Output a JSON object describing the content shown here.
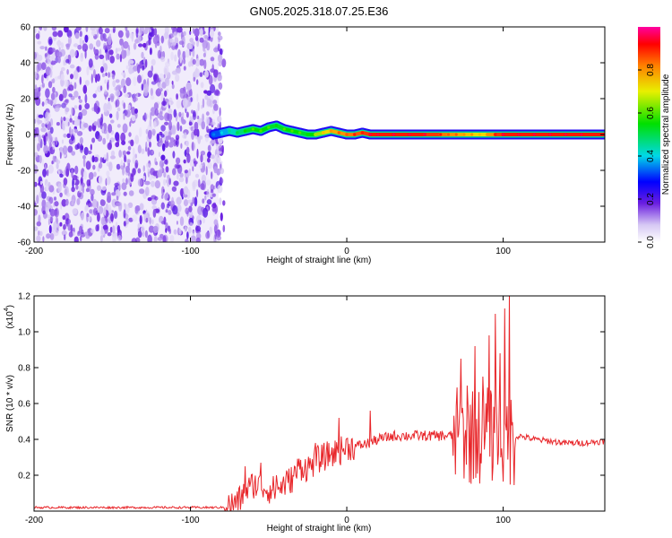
{
  "title": "GN05.2025.318.07.25.E36",
  "chart_data": [
    {
      "type": "heatmap",
      "name": "spectrogram",
      "xlabel": "Height of straight line (km)",
      "ylabel": "Frequency (Hz)",
      "xlim": [
        -200,
        165
      ],
      "ylim": [
        -60,
        60
      ],
      "xticks": [
        -200,
        -100,
        0,
        100
      ],
      "yticks": [
        -60,
        -40,
        -20,
        0,
        20,
        40,
        60
      ],
      "noise_region_x": [
        -200,
        -82
      ],
      "ridge": {
        "x": [
          -85,
          -80,
          -75,
          -70,
          -65,
          -60,
          -55,
          -50,
          -45,
          -40,
          -35,
          -30,
          -25,
          -20,
          -15,
          -10,
          -5,
          0,
          5,
          10,
          15,
          20,
          30,
          40,
          50,
          60,
          65,
          70,
          75,
          80,
          85,
          90,
          95,
          100,
          110,
          120,
          130,
          140,
          150,
          165
        ],
        "freq": [
          0,
          1,
          2,
          1,
          2,
          3,
          2,
          4,
          5,
          3,
          2,
          1,
          0,
          0,
          1,
          2,
          1,
          0,
          0,
          1,
          0,
          0,
          0,
          0,
          0,
          0,
          0,
          0,
          0,
          0,
          0,
          0,
          0,
          0,
          0,
          0,
          0,
          0,
          0,
          0
        ],
        "amplitude": [
          0.3,
          0.35,
          0.4,
          0.45,
          0.5,
          0.55,
          0.55,
          0.55,
          0.5,
          0.55,
          0.55,
          0.55,
          0.5,
          0.6,
          0.7,
          0.75,
          0.8,
          0.8,
          0.85,
          0.85,
          0.9,
          0.9,
          0.9,
          0.9,
          0.9,
          0.85,
          0.8,
          0.8,
          0.75,
          0.75,
          0.7,
          0.75,
          0.85,
          0.9,
          0.9,
          0.9,
          0.9,
          0.9,
          0.9,
          0.9
        ]
      },
      "colorbar": {
        "label": "Normalized spectral amplitude",
        "range": [
          0,
          1
        ],
        "ticks": [
          "0.0",
          "0.2",
          "0.4",
          "0.6",
          "0.8"
        ],
        "tick_values": [
          0,
          0.2,
          0.4,
          0.6,
          0.8
        ]
      }
    },
    {
      "type": "line",
      "name": "snr",
      "xlabel": "Height of straight line (km)",
      "ylabel": "SNR (10 * v/v)",
      "scale_label": "(x10",
      "scale_exp": "4",
      "scale_close": ")",
      "xlim": [
        -200,
        165
      ],
      "ylim": [
        0,
        1.2
      ],
      "xticks": [
        -200,
        -100,
        0,
        100
      ],
      "yticks": [
        0.2,
        0.4,
        0.6,
        0.8,
        1.0,
        1.2
      ],
      "ytick_labels": [
        "0.2",
        "0.4",
        "0.6",
        "0.8",
        "1.0",
        "1.2"
      ],
      "color": "#e8262a",
      "series": [
        {
          "name": "SNR",
          "x": [
            -200,
            -180,
            -160,
            -140,
            -120,
            -100,
            -90,
            -80,
            -75,
            -70,
            -65,
            -60,
            -55,
            -50,
            -45,
            -40,
            -35,
            -30,
            -25,
            -20,
            -15,
            -10,
            -5,
            0,
            5,
            10,
            15,
            20,
            25,
            30,
            35,
            40,
            45,
            50,
            55,
            60,
            65,
            70,
            75,
            80,
            85,
            90,
            95,
            100,
            105,
            110,
            120,
            130,
            140,
            150,
            165
          ],
          "y": [
            0.02,
            0.02,
            0.02,
            0.02,
            0.02,
            0.02,
            0.02,
            0.02,
            0.03,
            0.05,
            0.1,
            0.15,
            0.14,
            0.12,
            0.12,
            0.15,
            0.18,
            0.25,
            0.24,
            0.28,
            0.3,
            0.32,
            0.33,
            0.36,
            0.36,
            0.37,
            0.38,
            0.4,
            0.41,
            0.42,
            0.42,
            0.42,
            0.42,
            0.42,
            0.42,
            0.42,
            0.42,
            0.42,
            0.42,
            0.42,
            0.42,
            0.42,
            0.42,
            0.4,
            0.4,
            0.42,
            0.4,
            0.39,
            0.38,
            0.38,
            0.39
          ],
          "spikes": [
            {
              "x": -65,
              "y": 0.25
            },
            {
              "x": -55,
              "y": 0.27
            },
            {
              "x": -45,
              "y": 0.2
            },
            {
              "x": -20,
              "y": 0.38
            },
            {
              "x": -5,
              "y": 0.52
            },
            {
              "x": 15,
              "y": 0.56
            },
            {
              "x": 73,
              "y": 0.85
            },
            {
              "x": 77,
              "y": 0.7
            },
            {
              "x": 82,
              "y": 0.92
            },
            {
              "x": 87,
              "y": 0.75
            },
            {
              "x": 91,
              "y": 0.98
            },
            {
              "x": 95,
              "y": 1.1
            },
            {
              "x": 98,
              "y": 0.88
            },
            {
              "x": 101,
              "y": 1.13
            },
            {
              "x": 104,
              "y": 1.22
            }
          ]
        }
      ]
    }
  ]
}
